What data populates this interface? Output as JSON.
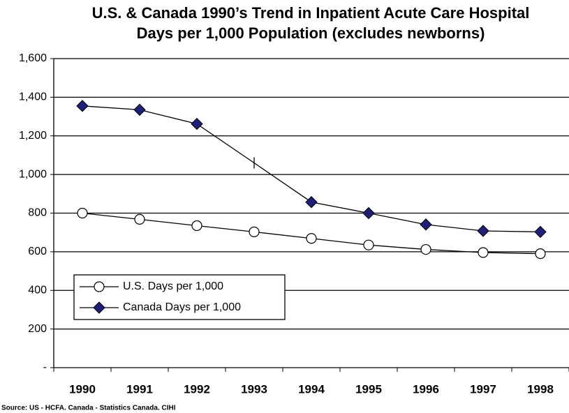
{
  "chart_data": {
    "type": "line",
    "title": [
      "U.S. & Canada 1990’s Trend in Inpatient Acute Care Hospital",
      "Days per 1,000 Population (excludes newborns)"
    ],
    "categories": [
      "1990",
      "1991",
      "1992",
      "1993",
      "1994",
      "1995",
      "1996",
      "1997",
      "1998"
    ],
    "series": [
      {
        "name": "U.S. Days per 1,000",
        "color": "#000000",
        "marker": "circle",
        "values": [
          800,
          768,
          735,
          703,
          669,
          635,
          612,
          596,
          590
        ]
      },
      {
        "name": "Canada Days per 1,000",
        "color": "#1f1f7a",
        "marker": "diamond",
        "values": [
          1355,
          1335,
          1262,
          1060,
          857,
          800,
          741,
          708,
          703
        ]
      }
    ],
    "ylim": [
      0,
      1600
    ],
    "yticks": [
      {
        "value": 0,
        "label": "-"
      },
      200,
      400,
      600,
      800,
      {
        "value": 1000,
        "label": "1,000"
      },
      {
        "value": 1200,
        "label": "1,200"
      },
      {
        "value": 1400,
        "label": "1,400"
      },
      {
        "value": 1600,
        "label": "1,600"
      }
    ],
    "grid": true,
    "source": "Source: US - HCFA. Canada - Statistics Canada. CIHI"
  }
}
